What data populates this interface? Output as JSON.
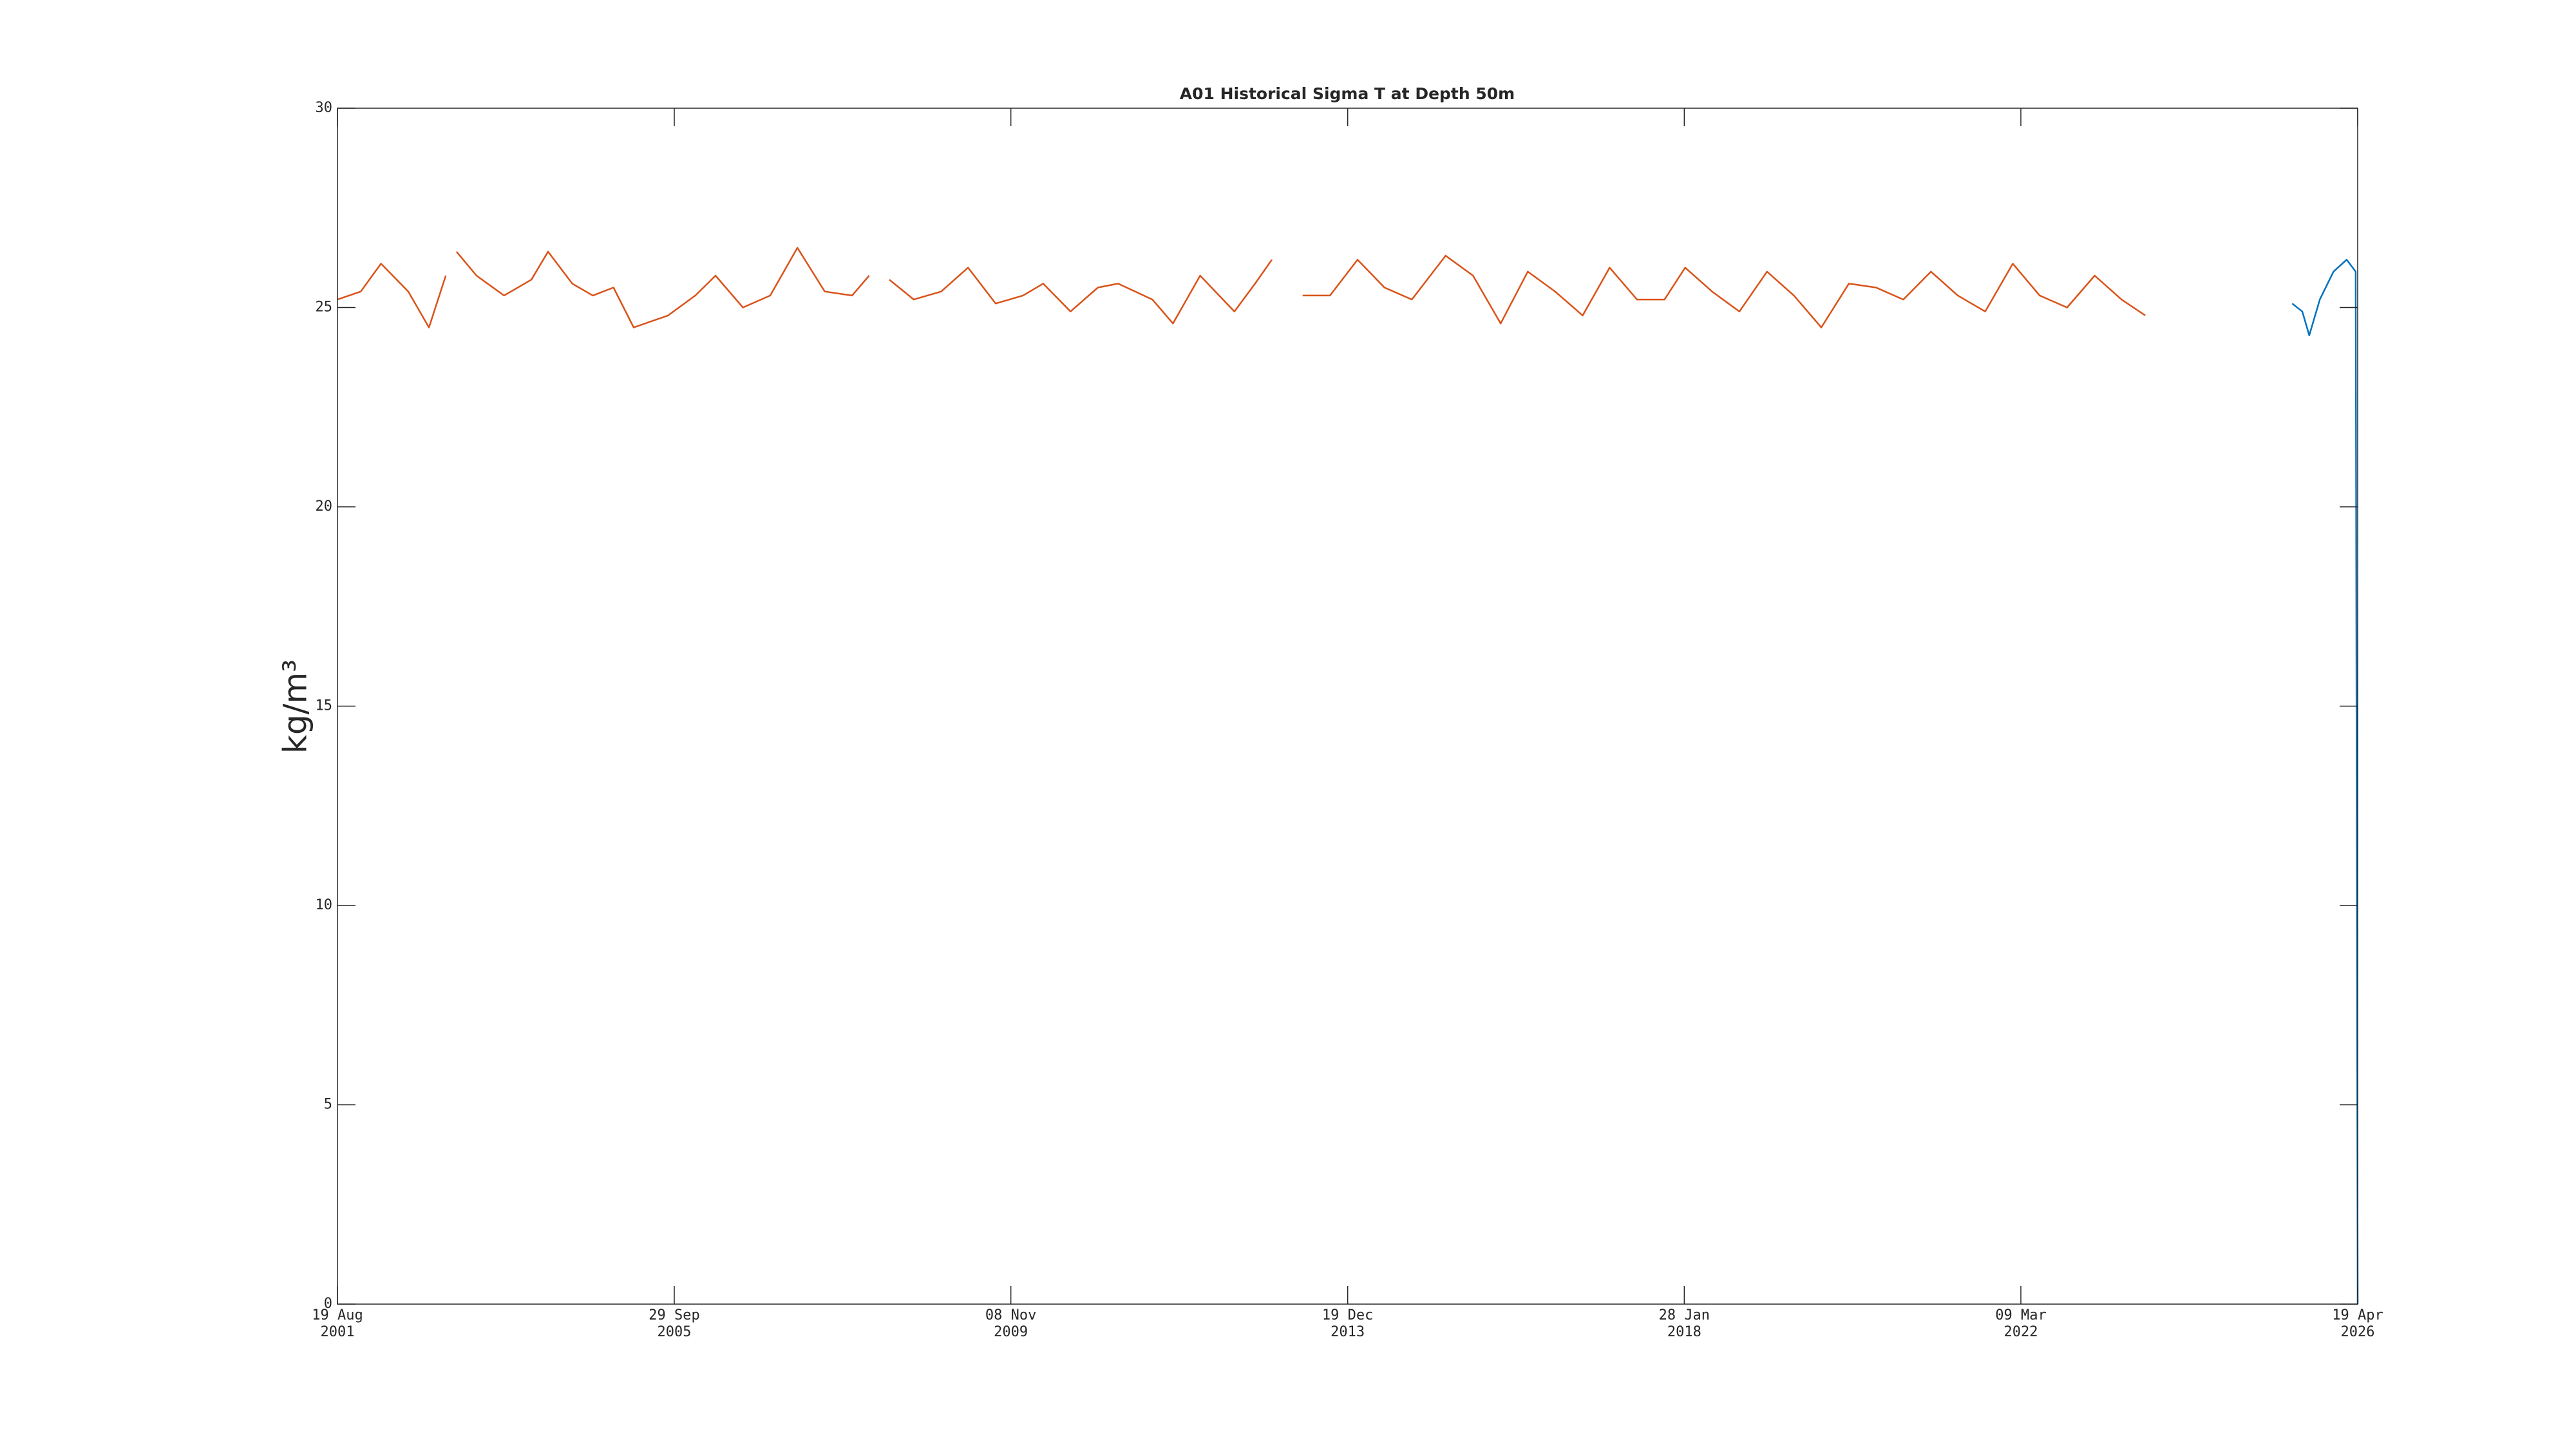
{
  "chart_data": {
    "type": "line",
    "title": "A01 Historical Sigma T at Depth 50m",
    "ylabel": "kg/m³",
    "xlim": [
      "2001-08-19",
      "2026-04-19"
    ],
    "xticks": [
      {
        "value": "2001-08-19",
        "label": [
          "19 Aug",
          "2001"
        ]
      },
      {
        "value": "2005-09-29",
        "label": [
          "29 Sep",
          "2005"
        ]
      },
      {
        "value": "2009-11-08",
        "label": [
          "08 Nov",
          "2009"
        ]
      },
      {
        "value": "2013-12-19",
        "label": [
          "19 Dec",
          "2013"
        ]
      },
      {
        "value": "2018-01-28",
        "label": [
          "28 Jan",
          "2018"
        ]
      },
      {
        "value": "2022-03-09",
        "label": [
          "09 Mar",
          "2022"
        ]
      },
      {
        "value": "2026-04-19",
        "label": [
          "19 Apr",
          "2026"
        ]
      }
    ],
    "ylim": [
      0,
      30
    ],
    "yticks": [
      0,
      5,
      10,
      15,
      20,
      25,
      30
    ],
    "series": [
      {
        "color": "#d95319",
        "x": [
          "2001-08-19",
          "2001-12-01",
          "2002-03-01",
          "2002-07-01",
          "2002-10-01",
          "2002-12-15",
          "2003-01-15",
          "2003-02-01",
          "2003-05-01",
          "2003-09-01",
          "2004-01-01",
          "2004-03-15",
          "2004-07-01",
          "2004-10-01",
          "2005-01-01",
          "2005-04-01",
          "2005-09-01",
          "2006-01-01",
          "2006-04-01",
          "2006-08-01",
          "2006-12-01",
          "2007-04-01",
          "2007-08-01",
          "2007-12-01",
          "2008-02-15",
          "2008-04-01",
          "2008-05-15",
          "2008-09-01",
          "2009-01-01",
          "2009-05-01",
          "2009-09-01",
          "2010-01-01",
          "2010-04-01",
          "2010-08-01",
          "2010-12-01",
          "2011-03-01",
          "2011-08-01",
          "2011-11-01",
          "2012-03-01",
          "2012-08-01",
          "2012-11-01",
          "2013-01-15",
          "2013-04-01",
          "2013-06-01",
          "2013-10-01",
          "2014-02-01",
          "2014-06-01",
          "2014-10-01",
          "2015-03-01",
          "2015-07-01",
          "2015-11-01",
          "2016-03-01",
          "2016-07-01",
          "2016-11-01",
          "2017-03-01",
          "2017-07-01",
          "2017-11-01",
          "2018-02-01",
          "2018-06-01",
          "2018-10-01",
          "2019-02-01",
          "2019-06-01",
          "2019-10-01",
          "2020-02-01",
          "2020-06-01",
          "2020-10-01",
          "2021-02-01",
          "2021-06-01",
          "2021-10-01",
          "2022-02-01",
          "2022-06-01",
          "2022-10-01",
          "2023-02-01",
          "2023-06-01",
          "2023-09-15"
        ],
        "values": [
          25.2,
          25.4,
          26.1,
          25.4,
          24.5,
          25.8,
          null,
          26.4,
          25.8,
          25.3,
          25.7,
          26.4,
          25.6,
          25.3,
          25.5,
          24.5,
          24.8,
          25.3,
          25.8,
          25.0,
          25.3,
          26.5,
          25.4,
          25.3,
          25.8,
          null,
          25.7,
          25.2,
          25.4,
          26.0,
          25.1,
          25.3,
          25.6,
          24.9,
          25.5,
          25.6,
          25.2,
          24.6,
          25.8,
          24.9,
          25.6,
          26.2,
          null,
          25.3,
          25.3,
          26.2,
          25.5,
          25.2,
          26.3,
          25.8,
          24.6,
          25.9,
          25.4,
          24.8,
          26.0,
          25.2,
          25.2,
          26.0,
          25.4,
          24.9,
          25.9,
          25.3,
          24.5,
          25.6,
          25.5,
          25.2,
          25.9,
          25.3,
          24.9,
          26.1,
          25.3,
          25.0,
          25.8,
          25.2,
          24.8
        ]
      },
      {
        "color": "#0072bd",
        "x": [
          "2025-07-01",
          "2025-08-15",
          "2025-09-15",
          "2025-11-01",
          "2026-01-01",
          "2026-03-01",
          "2026-04-10",
          "2026-04-19"
        ],
        "values": [
          25.1,
          24.9,
          24.3,
          25.2,
          25.9,
          26.2,
          25.9,
          0
        ]
      }
    ]
  }
}
